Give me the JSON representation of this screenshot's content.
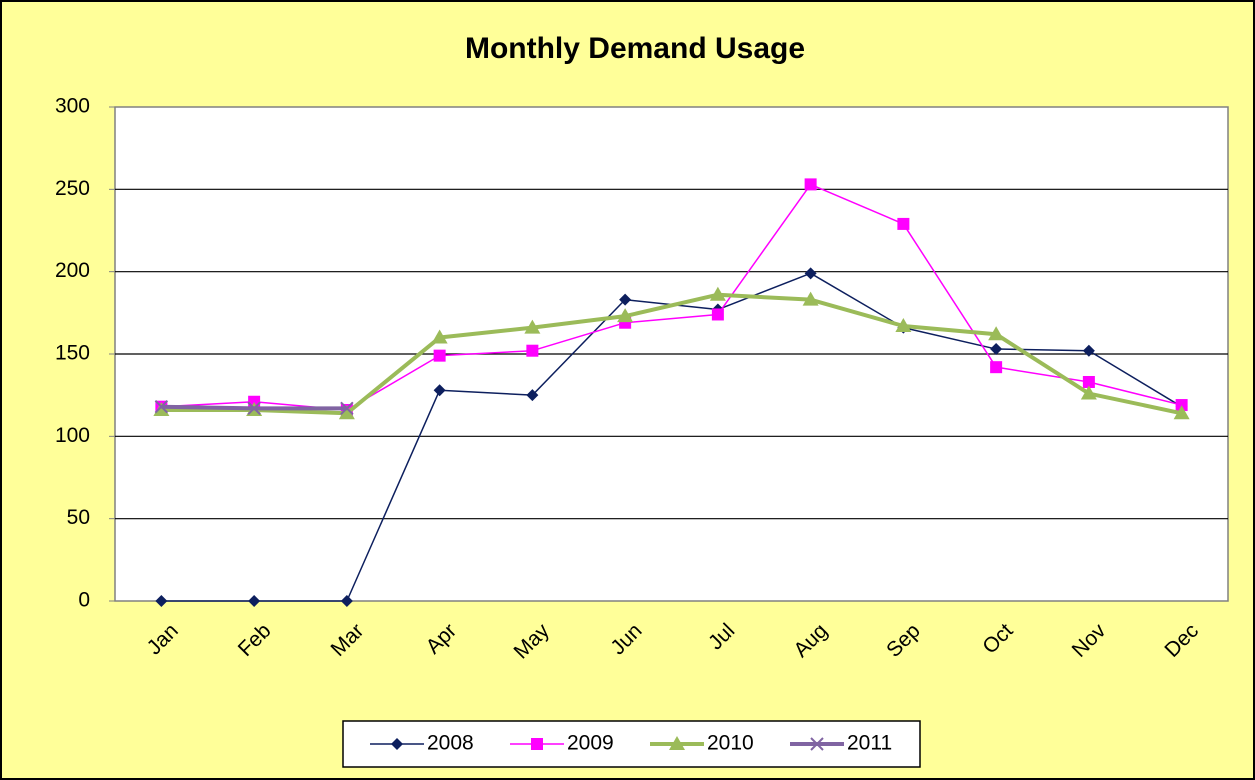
{
  "chart_data": {
    "type": "line",
    "title": "Monthly Demand Usage",
    "categories": [
      "Jan",
      "Feb",
      "Mar",
      "Apr",
      "May",
      "Jun",
      "Jul",
      "Aug",
      "Sep",
      "Oct",
      "Nov",
      "Dec"
    ],
    "series": [
      {
        "name": "2008",
        "color": "#0d1f5e",
        "marker": "diamond",
        "line_width": 1.5,
        "values": [
          0,
          0,
          0,
          128,
          125,
          183,
          177,
          199,
          166,
          153,
          152,
          118
        ]
      },
      {
        "name": "2009",
        "color": "#ff00ff",
        "marker": "square",
        "line_width": 1.5,
        "values": [
          118,
          121,
          116,
          149,
          152,
          169,
          174,
          253,
          229,
          142,
          133,
          119
        ]
      },
      {
        "name": "2010",
        "color": "#9bbb59",
        "marker": "triangle",
        "line_width": 4,
        "values": [
          116,
          116,
          114,
          160,
          166,
          173,
          186,
          183,
          167,
          162,
          126,
          114
        ]
      },
      {
        "name": "2011",
        "color": "#8064a2",
        "marker": "x",
        "line_width": 4,
        "values": [
          118,
          117,
          117,
          null,
          null,
          null,
          null,
          null,
          null,
          null,
          null,
          null
        ]
      }
    ],
    "ylim": [
      0,
      300
    ],
    "yticks": [
      0,
      50,
      100,
      150,
      200,
      250,
      300
    ],
    "grid": true,
    "legend": "bottom"
  }
}
